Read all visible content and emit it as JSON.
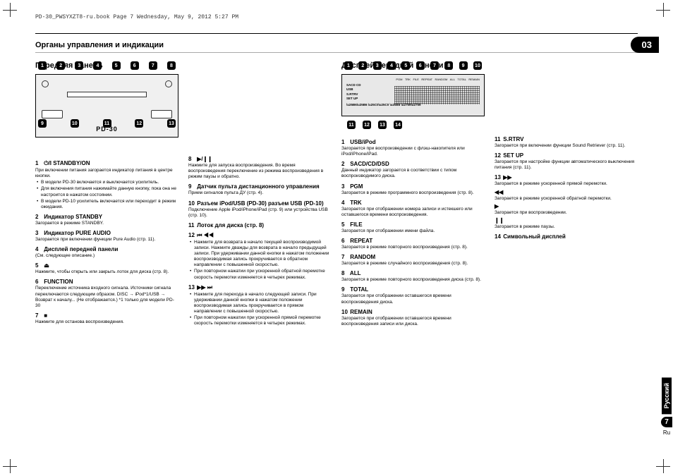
{
  "header_path": "PD-30_PWSYXZT8-ru.book  Page 7  Wednesday, May 9, 2012  5:27 PM",
  "section_title": "Органы управления и индикации",
  "section_number": "03",
  "model_label": "PD-30",
  "left": {
    "title": "Передняя панель",
    "top_callouts": [
      "1",
      "2",
      "3",
      "4",
      "5",
      "6",
      "7",
      "8"
    ],
    "bottom_callouts": [
      "9",
      "10",
      "11",
      "12",
      "13"
    ]
  },
  "right": {
    "title": "Дисплей передней панели",
    "top_callouts": [
      "1",
      "2",
      "3",
      "4",
      "5",
      "6",
      "7",
      "8",
      "9",
      "10"
    ],
    "bottom_callouts": [
      "11",
      "12",
      "13",
      "14"
    ],
    "disp_labels_line1": "SACD  CD",
    "disp_labels_line2": "USB",
    "disp_labels_line3": "S.RTRV",
    "disp_labels_line4": "SET UP",
    "disp_top_labels": [
      "PGM",
      "TRK",
      "FILE",
      "REPEAT",
      "RANDOM",
      "ALL",
      "TOTAL",
      "REMAIN"
    ]
  },
  "col1": [
    {
      "num": "1",
      "title": "⏻/I STANDBY/ON",
      "desc": "При включении питания загорается индикатор питания в центре кнопки.",
      "bullets": [
        "В модели PD-30 включается и выключается усилитель.",
        "Для включения питания нажимайте данную кнопку, пока она не настроится в нажатом состоянии.",
        "В модели PD-10 усилитель включается или переходит в режим ожидания."
      ]
    },
    {
      "num": "2",
      "title": "Индикатор STANDBY",
      "desc": "Загорается в режиме STANDBY."
    },
    {
      "num": "3",
      "title": "Индикатор PURE AUDIO",
      "desc": "Загорается при включении функции Pure Audio (стр. 11)."
    },
    {
      "num": "4",
      "title": "Дисплей передней панели",
      "desc": "(См. следующее описание.)"
    },
    {
      "num": "5",
      "title": "⏏",
      "desc": "Нажмите, чтобы открыть или закрыть лоток для диска (стр. 8)."
    },
    {
      "num": "6",
      "title": "FUNCTION",
      "desc": "Переключение источника входного сигнала. Источники сигнала переключаются следующим образом.\nDISC → iPod*1/USB → Возврат к началу...\n(Не отображается.)\n*1 только для модели PD-30"
    },
    {
      "num": "7",
      "title": "■",
      "desc": "Нажмите для останова воспроизведения."
    }
  ],
  "col2": [
    {
      "num": "8",
      "title": "▶/❙❙",
      "desc": "Нажмите для запуска воспроизведения. Во время воспроизведения переключение из режима воспроизведения в режим паузы и обратно."
    },
    {
      "num": "9",
      "title": "Датчик пульта дистанционного управления",
      "desc": "Прием сигналов пульта ДУ (стр. 4)."
    },
    {
      "num": "10",
      "title": "Разъем iPod/USB (PD-30) разъем USB (PD-10)",
      "desc": "Подключение Apple iPod/iPhone/iPad (стр. 9) или устройства USB (стр. 10)."
    },
    {
      "num": "11",
      "title": "Лоток для диска (стр. 8)"
    },
    {
      "num": "12",
      "title": "⏮  ◀◀",
      "desc": "",
      "bullets": [
        "Нажмите для возврата в начало текущей воспроизводимой записи. Нажмите дважды для возврата в начало предыдущей записи. При удерживании данной кнопки в нажатом положении воспроизводимая запись прокручивается в обратном направлении с повышенной скоростью.",
        "При повторном нажатии при ускоренной обратной перемотке скорость перемотки изменяется в четырех режимах."
      ]
    },
    {
      "num": "13",
      "title": "▶▶  ⏭",
      "desc": "",
      "bullets": [
        "Нажмите для перехода в начало следующей записи. При удерживании данной кнопки в нажатом положении воспроизводимая запись прокручивается в прямом направлении с повышенной скоростью.",
        "При повторном нажатии при ускоренной прямой перемотке скорость перемотки изменяется в четырех режимах."
      ]
    }
  ],
  "col3": [
    {
      "num": "1",
      "title": "USB/iPod",
      "desc": "Загорается при воспроизведении с флэш-накопителя или iPod/iPhone/iPad."
    },
    {
      "num": "2",
      "title": "SACD/CD/DSD",
      "desc": "Данный индикатор загорается в соответствии с типом воспроизводимого диска."
    },
    {
      "num": "3",
      "title": "PGM",
      "desc": "Загорается в режиме программного воспроизведения (стр. 8)."
    },
    {
      "num": "4",
      "title": "TRK",
      "desc": "Загорается при отображении номера записи и истекшего или оставшегося времени воспроизведения."
    },
    {
      "num": "5",
      "title": "FILE",
      "desc": "Загорается при отображении имени файла."
    },
    {
      "num": "6",
      "title": "REPEAT",
      "desc": "Загорается в режиме повторного воспроизведения (стр. 8)."
    },
    {
      "num": "7",
      "title": "RANDOM",
      "desc": "Загорается в режиме случайного воспроизведения (стр. 8)."
    },
    {
      "num": "8",
      "title": "ALL",
      "desc": "Загорается в режиме повторного воспроизведения диска (стр. 8)."
    },
    {
      "num": "9",
      "title": "TOTAL",
      "desc": "Загорается при отображении оставшегося времени воспроизведения диска."
    },
    {
      "num": "10",
      "title": "REMAIN",
      "desc": "Загорается при отображении оставшегося времени воспроизведения записи или диска."
    }
  ],
  "col4": [
    {
      "num": "11",
      "title": "S.RTRV",
      "desc": "Загорается при включении функции Sound Retriever (стр. 11)."
    },
    {
      "num": "12",
      "title": "SET UP",
      "desc": "Загорается при настройке функции автоматического выключения питания (стр. 11)."
    },
    {
      "num": "13",
      "title": "▶▶",
      "desc": "Загорается в режиме ускоренной прямой перемотки.",
      "extra": [
        {
          "sym": "◀◀",
          "txt": "Загорается в режиме ускоренной обратной перемотки."
        },
        {
          "sym": "▶",
          "txt": "Загорается при воспроизведении."
        },
        {
          "sym": "❙❙",
          "txt": "Загорается в режиме паузы."
        }
      ]
    },
    {
      "num": "14",
      "title": "Символьный дисплей"
    }
  ],
  "lang": {
    "label": "Русский",
    "page": "7",
    "code": "Ru"
  }
}
